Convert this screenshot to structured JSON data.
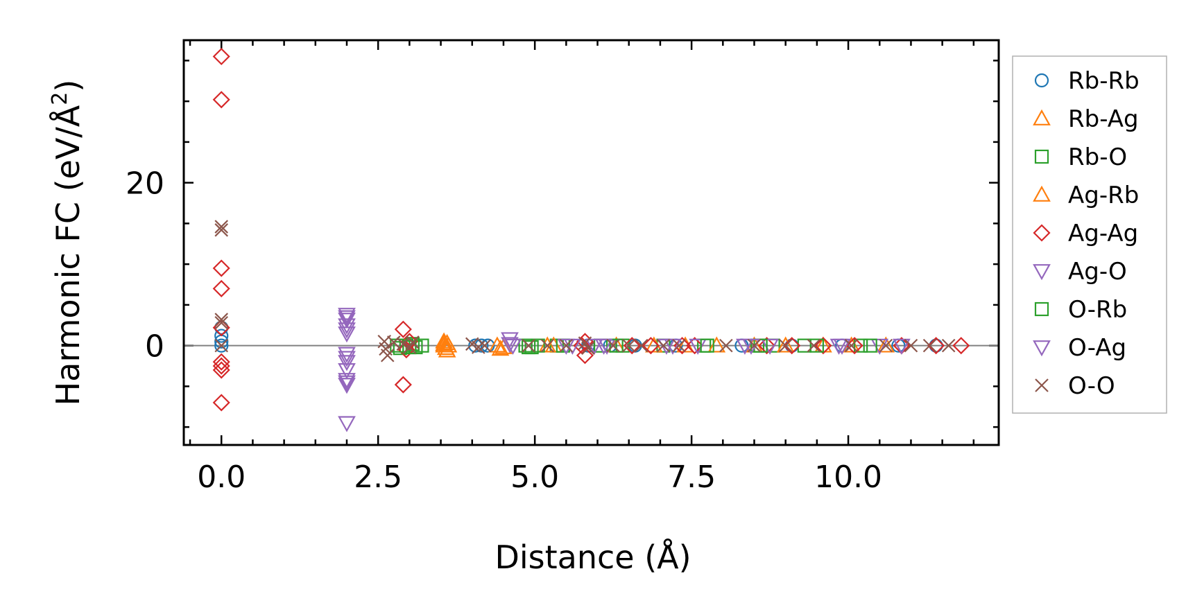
{
  "chart_data": {
    "type": "scatter",
    "xlabel": "Distance (Å)",
    "ylabel_main": "Harmonic FC (eV/Å",
    "ylabel_sup": "2",
    "ylabel_close": ")",
    "xlim": [
      -0.6,
      12.4
    ],
    "ylim": [
      -12.2,
      37.5
    ],
    "xticks": [
      0.0,
      2.5,
      5.0,
      7.5,
      10.0
    ],
    "xtick_labels": [
      "0.0",
      "2.5",
      "5.0",
      "7.5",
      "10.0"
    ],
    "yticks": [
      0,
      20
    ],
    "ytick_labels": [
      "0",
      "20"
    ],
    "reference_line_y": 0,
    "legend_position": "right",
    "series": [
      {
        "name": "Rb-Rb",
        "marker": "circle",
        "color": "#1f77b4",
        "points": [
          [
            0,
            0.5
          ],
          [
            0,
            0
          ],
          [
            0,
            1.2
          ],
          [
            0,
            2.2
          ],
          [
            4.05,
            0
          ],
          [
            4.15,
            0
          ],
          [
            4.25,
            0
          ],
          [
            5.85,
            0
          ],
          [
            6.2,
            0
          ],
          [
            6.6,
            0
          ],
          [
            7.25,
            0
          ],
          [
            8.3,
            0
          ],
          [
            9.1,
            0
          ],
          [
            9.9,
            0
          ],
          [
            10.8,
            0
          ],
          [
            11.4,
            0
          ]
        ]
      },
      {
        "name": "Rb-Ag",
        "marker": "triangle-up",
        "color": "#ff7f0e",
        "points": [
          [
            3.55,
            0.2
          ],
          [
            3.58,
            -0.3
          ],
          [
            3.6,
            -0.6
          ],
          [
            3.62,
            0
          ],
          [
            3.55,
            0.5
          ],
          [
            4.4,
            0
          ],
          [
            4.45,
            -0.4
          ],
          [
            5.2,
            0
          ],
          [
            6.3,
            0
          ],
          [
            7.4,
            0
          ],
          [
            8.5,
            0
          ],
          [
            9.6,
            0
          ],
          [
            10.05,
            0
          ]
        ]
      },
      {
        "name": "Rb-O",
        "marker": "square",
        "color": "#2ca02c",
        "points": [
          [
            2.85,
            -0.3
          ],
          [
            2.95,
            0
          ],
          [
            3.05,
            0.2
          ],
          [
            3.1,
            -0.2
          ],
          [
            3.2,
            0
          ],
          [
            4.85,
            0
          ],
          [
            4.95,
            -0.2
          ],
          [
            5.05,
            0
          ],
          [
            5.35,
            0
          ],
          [
            6.05,
            0
          ],
          [
            6.4,
            0
          ],
          [
            7.05,
            0
          ],
          [
            7.7,
            0
          ],
          [
            8.55,
            0
          ],
          [
            8.8,
            0
          ],
          [
            9.3,
            0
          ],
          [
            10.2,
            0
          ]
        ]
      },
      {
        "name": "Ag-Rb",
        "marker": "triangle-up",
        "color": "#ff7f0e",
        "points": [
          [
            3.55,
            0
          ],
          [
            3.6,
            0.3
          ],
          [
            4.5,
            -0.2
          ],
          [
            5.3,
            0
          ],
          [
            6.9,
            0
          ],
          [
            7.9,
            0
          ],
          [
            9.0,
            0
          ],
          [
            10.6,
            0
          ]
        ]
      },
      {
        "name": "Ag-Ag",
        "marker": "diamond",
        "color": "#d62728",
        "points": [
          [
            0,
            35.5
          ],
          [
            0,
            30.2
          ],
          [
            0,
            9.5
          ],
          [
            0,
            7
          ],
          [
            0,
            2.2
          ],
          [
            0,
            -2
          ],
          [
            0,
            -2.5
          ],
          [
            0,
            -3
          ],
          [
            0,
            -7
          ],
          [
            2.9,
            2
          ],
          [
            2.95,
            -0.5
          ],
          [
            3.0,
            0.5
          ],
          [
            2.9,
            -4.8
          ],
          [
            5.8,
            0.5
          ],
          [
            5.8,
            -1.2
          ],
          [
            5.75,
            0
          ],
          [
            6.55,
            0
          ],
          [
            6.85,
            0
          ],
          [
            7.35,
            0
          ],
          [
            7.55,
            0
          ],
          [
            8.7,
            0
          ],
          [
            9.1,
            0
          ],
          [
            9.6,
            0
          ],
          [
            10.1,
            0
          ],
          [
            10.85,
            0
          ],
          [
            11.4,
            0
          ],
          [
            11.8,
            0
          ]
        ]
      },
      {
        "name": "Ag-O",
        "marker": "triangle-down",
        "color": "#9467bd",
        "points": [
          [
            2.0,
            3.8
          ],
          [
            2.0,
            3.2
          ],
          [
            2.0,
            2.5
          ],
          [
            2.0,
            2
          ],
          [
            2.0,
            1.5
          ],
          [
            2.0,
            -1
          ],
          [
            2.0,
            -2
          ],
          [
            2.0,
            -3
          ],
          [
            2.0,
            -4.2
          ],
          [
            2.0,
            -4.8
          ],
          [
            2.0,
            -9.5
          ],
          [
            4.6,
            0.8
          ],
          [
            4.65,
            0
          ],
          [
            5.6,
            0
          ],
          [
            5.95,
            0
          ],
          [
            6.15,
            0
          ],
          [
            7.1,
            0
          ],
          [
            7.6,
            0
          ],
          [
            8.35,
            0
          ],
          [
            8.75,
            0
          ],
          [
            9.85,
            0
          ],
          [
            10.5,
            0
          ],
          [
            10.85,
            0
          ]
        ]
      },
      {
        "name": "O-Rb",
        "marker": "square",
        "color": "#2ca02c",
        "points": [
          [
            2.8,
            0
          ],
          [
            3.0,
            -0.2
          ],
          [
            4.9,
            -0.2
          ],
          [
            5.45,
            0
          ],
          [
            6.3,
            0
          ],
          [
            7.75,
            0
          ],
          [
            8.6,
            0
          ],
          [
            9.5,
            0
          ],
          [
            10.35,
            0
          ]
        ]
      },
      {
        "name": "O-Ag",
        "marker": "triangle-down",
        "color": "#9467bd",
        "points": [
          [
            2.0,
            3.5
          ],
          [
            2.0,
            -1.5
          ],
          [
            2.0,
            -4.5
          ],
          [
            4.6,
            0.2
          ],
          [
            5.5,
            0
          ],
          [
            6.1,
            0
          ],
          [
            7.2,
            0
          ],
          [
            8.45,
            0
          ],
          [
            9.9,
            0
          ]
        ]
      },
      {
        "name": "O-O",
        "marker": "x",
        "color": "#8c564b",
        "points": [
          [
            0,
            14.6
          ],
          [
            0,
            14.2
          ],
          [
            0,
            3.2
          ],
          [
            0,
            2.8
          ],
          [
            0,
            0
          ],
          [
            2.6,
            0.5
          ],
          [
            2.62,
            -0.4
          ],
          [
            2.65,
            -1.2
          ],
          [
            2.75,
            0.4
          ],
          [
            2.9,
            0.2
          ],
          [
            3.0,
            -0.2
          ],
          [
            3.05,
            0.4
          ],
          [
            4.0,
            0.2
          ],
          [
            4.1,
            -0.2
          ],
          [
            4.2,
            0
          ],
          [
            4.9,
            0
          ],
          [
            5.2,
            0
          ],
          [
            5.5,
            0
          ],
          [
            5.8,
            0.3
          ],
          [
            5.85,
            -0.3
          ],
          [
            6.25,
            0
          ],
          [
            6.5,
            0
          ],
          [
            6.7,
            0
          ],
          [
            7.05,
            0
          ],
          [
            7.3,
            0
          ],
          [
            8.05,
            0
          ],
          [
            8.5,
            0
          ],
          [
            9.0,
            0
          ],
          [
            9.45,
            0
          ],
          [
            10.05,
            0
          ],
          [
            10.6,
            0
          ],
          [
            11.0,
            0
          ],
          [
            11.3,
            0
          ],
          [
            11.6,
            0
          ]
        ]
      }
    ]
  }
}
